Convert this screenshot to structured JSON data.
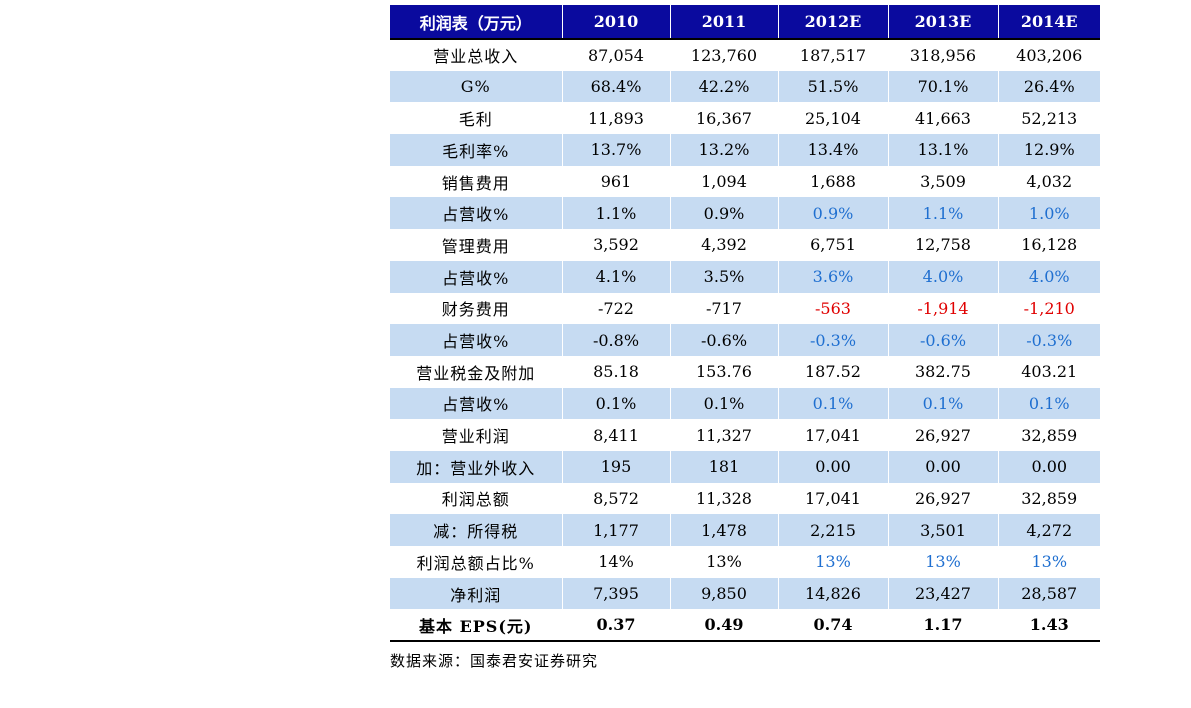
{
  "table": {
    "headers": [
      "利润表（万元）",
      "2010",
      "2011",
      "2012E",
      "2013E",
      "2014E"
    ],
    "rows": [
      {
        "label": "营业总收入",
        "values": [
          "87,054",
          "123,760",
          "187,517",
          "318,956",
          "403,206"
        ],
        "shade": false,
        "style": "normal"
      },
      {
        "label": "G%",
        "values": [
          "68.4%",
          "42.2%",
          "51.5%",
          "70.1%",
          "26.4%"
        ],
        "shade": true,
        "style": "normal"
      },
      {
        "label": "毛利",
        "values": [
          "11,893",
          "16,367",
          "25,104",
          "41,663",
          "52,213"
        ],
        "shade": false,
        "style": "normal"
      },
      {
        "label": "毛利率%",
        "values": [
          "13.7%",
          "13.2%",
          "13.4%",
          "13.1%",
          "12.9%"
        ],
        "shade": true,
        "style": "normal"
      },
      {
        "label": "销售费用",
        "values": [
          "961",
          "1,094",
          "1,688",
          "3,509",
          "4,032"
        ],
        "shade": false,
        "style": "normal"
      },
      {
        "label": "占营收%",
        "values": [
          "1.1%",
          "0.9%",
          "0.9%",
          "1.1%",
          "1.0%"
        ],
        "shade": true,
        "style": "blue"
      },
      {
        "label": "管理费用",
        "values": [
          "3,592",
          "4,392",
          "6,751",
          "12,758",
          "16,128"
        ],
        "shade": false,
        "style": "normal"
      },
      {
        "label": "占营收%",
        "values": [
          "4.1%",
          "3.5%",
          "3.6%",
          "4.0%",
          "4.0%"
        ],
        "shade": true,
        "style": "blue"
      },
      {
        "label": "财务费用",
        "values": [
          "-722",
          "-717",
          "-563",
          "-1,914",
          "-1,210"
        ],
        "shade": false,
        "style": "red"
      },
      {
        "label": "占营收%",
        "values": [
          "-0.8%",
          "-0.6%",
          "-0.3%",
          "-0.6%",
          "-0.3%"
        ],
        "shade": true,
        "style": "blue"
      },
      {
        "label": "营业税金及附加",
        "values": [
          "85.18",
          "153.76",
          "187.52",
          "382.75",
          "403.21"
        ],
        "shade": false,
        "style": "normal"
      },
      {
        "label": "占营收%",
        "values": [
          "0.1%",
          "0.1%",
          "0.1%",
          "0.1%",
          "0.1%"
        ],
        "shade": true,
        "style": "blue"
      },
      {
        "label": "营业利润",
        "values": [
          "8,411",
          "11,327",
          "17,041",
          "26,927",
          "32,859"
        ],
        "shade": false,
        "style": "normal"
      },
      {
        "label": "加：营业外收入",
        "values": [
          "195",
          "181",
          "0.00",
          "0.00",
          "0.00"
        ],
        "shade": true,
        "style": "normal"
      },
      {
        "label": "利润总额",
        "values": [
          "8,572",
          "11,328",
          "17,041",
          "26,927",
          "32,859"
        ],
        "shade": false,
        "style": "normal"
      },
      {
        "label": "减：所得税",
        "values": [
          "1,177",
          "1,478",
          "2,215",
          "3,501",
          "4,272"
        ],
        "shade": true,
        "style": "normal"
      },
      {
        "label": "利润总额占比%",
        "values": [
          "14%",
          "13%",
          "13%",
          "13%",
          "13%"
        ],
        "shade": false,
        "style": "blue"
      },
      {
        "label": "净利润",
        "values": [
          "7,395",
          "9,850",
          "14,826",
          "23,427",
          "28,587"
        ],
        "shade": true,
        "style": "normal"
      },
      {
        "label": "基本 EPS(元)",
        "values": [
          "0.37",
          "0.49",
          "0.74",
          "1.17",
          "1.43"
        ],
        "shade": false,
        "style": "bold"
      }
    ]
  },
  "source_note": "数据来源：国泰君安证券研究",
  "colors": {
    "header_bg": "#0a0a9e",
    "shade_bg": "#c6dbf2",
    "forecast_blue": "#1f6fd0",
    "forecast_red": "#e00000"
  }
}
